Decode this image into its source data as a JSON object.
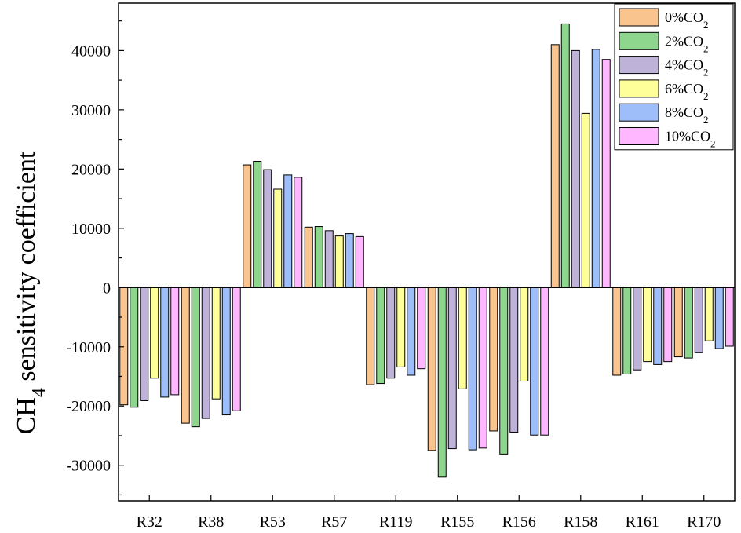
{
  "chart_data": {
    "type": "bar",
    "title": "",
    "xlabel": "",
    "ylabel": "CH4 sensitivity coefficient",
    "ylabel_main": "CH",
    "ylabel_sub": "4",
    "ylabel_rest": " sensitivity coefficient",
    "ylim": [
      -36000,
      48000
    ],
    "yticks": [
      -30000,
      -20000,
      -10000,
      0,
      10000,
      20000,
      30000,
      40000
    ],
    "ytick_labels": [
      "-30000",
      "-20000",
      "-10000",
      "0",
      "10000",
      "20000",
      "30000",
      "40000"
    ],
    "categories": [
      "R32",
      "R38",
      "R53",
      "R57",
      "R119",
      "R155",
      "R156",
      "R158",
      "R161",
      "R170"
    ],
    "legend_position": "top-right",
    "series": [
      {
        "name": "0%CO2",
        "label_main": "0%CO",
        "label_sub": "2",
        "color": "#FAC48E",
        "values": [
          -19800,
          -22900,
          20700,
          10200,
          -16400,
          -27500,
          -24200,
          41000,
          -14800,
          -11700
        ]
      },
      {
        "name": "2%CO2",
        "label_main": "2%CO",
        "label_sub": "2",
        "color": "#8ED58E",
        "values": [
          -20200,
          -23500,
          21300,
          10300,
          -16200,
          -32000,
          -28100,
          44500,
          -14600,
          -11900
        ]
      },
      {
        "name": "4%CO2",
        "label_main": "4%CO",
        "label_sub": "2",
        "color": "#BFB2D9",
        "values": [
          -19100,
          -22100,
          19900,
          9600,
          -15300,
          -27200,
          -24400,
          40000,
          -13900,
          -11000
        ]
      },
      {
        "name": "6%CO2",
        "label_main": "6%CO",
        "label_sub": "2",
        "color": "#FFFF99",
        "values": [
          -15300,
          -18800,
          16600,
          8700,
          -13400,
          -17100,
          -15800,
          29400,
          -12500,
          -9000
        ]
      },
      {
        "name": "8%CO2",
        "label_main": "8%CO",
        "label_sub": "2",
        "color": "#9EBEFA",
        "values": [
          -18500,
          -21500,
          19000,
          9100,
          -14800,
          -27400,
          -24900,
          40200,
          -13000,
          -10300
        ]
      },
      {
        "name": "10%CO2",
        "label_main": "10%CO",
        "label_sub": "2",
        "color": "#FFB8FF",
        "values": [
          -18100,
          -20800,
          18600,
          8600,
          -13700,
          -27100,
          -24900,
          38500,
          -12500,
          -9900
        ]
      }
    ]
  }
}
